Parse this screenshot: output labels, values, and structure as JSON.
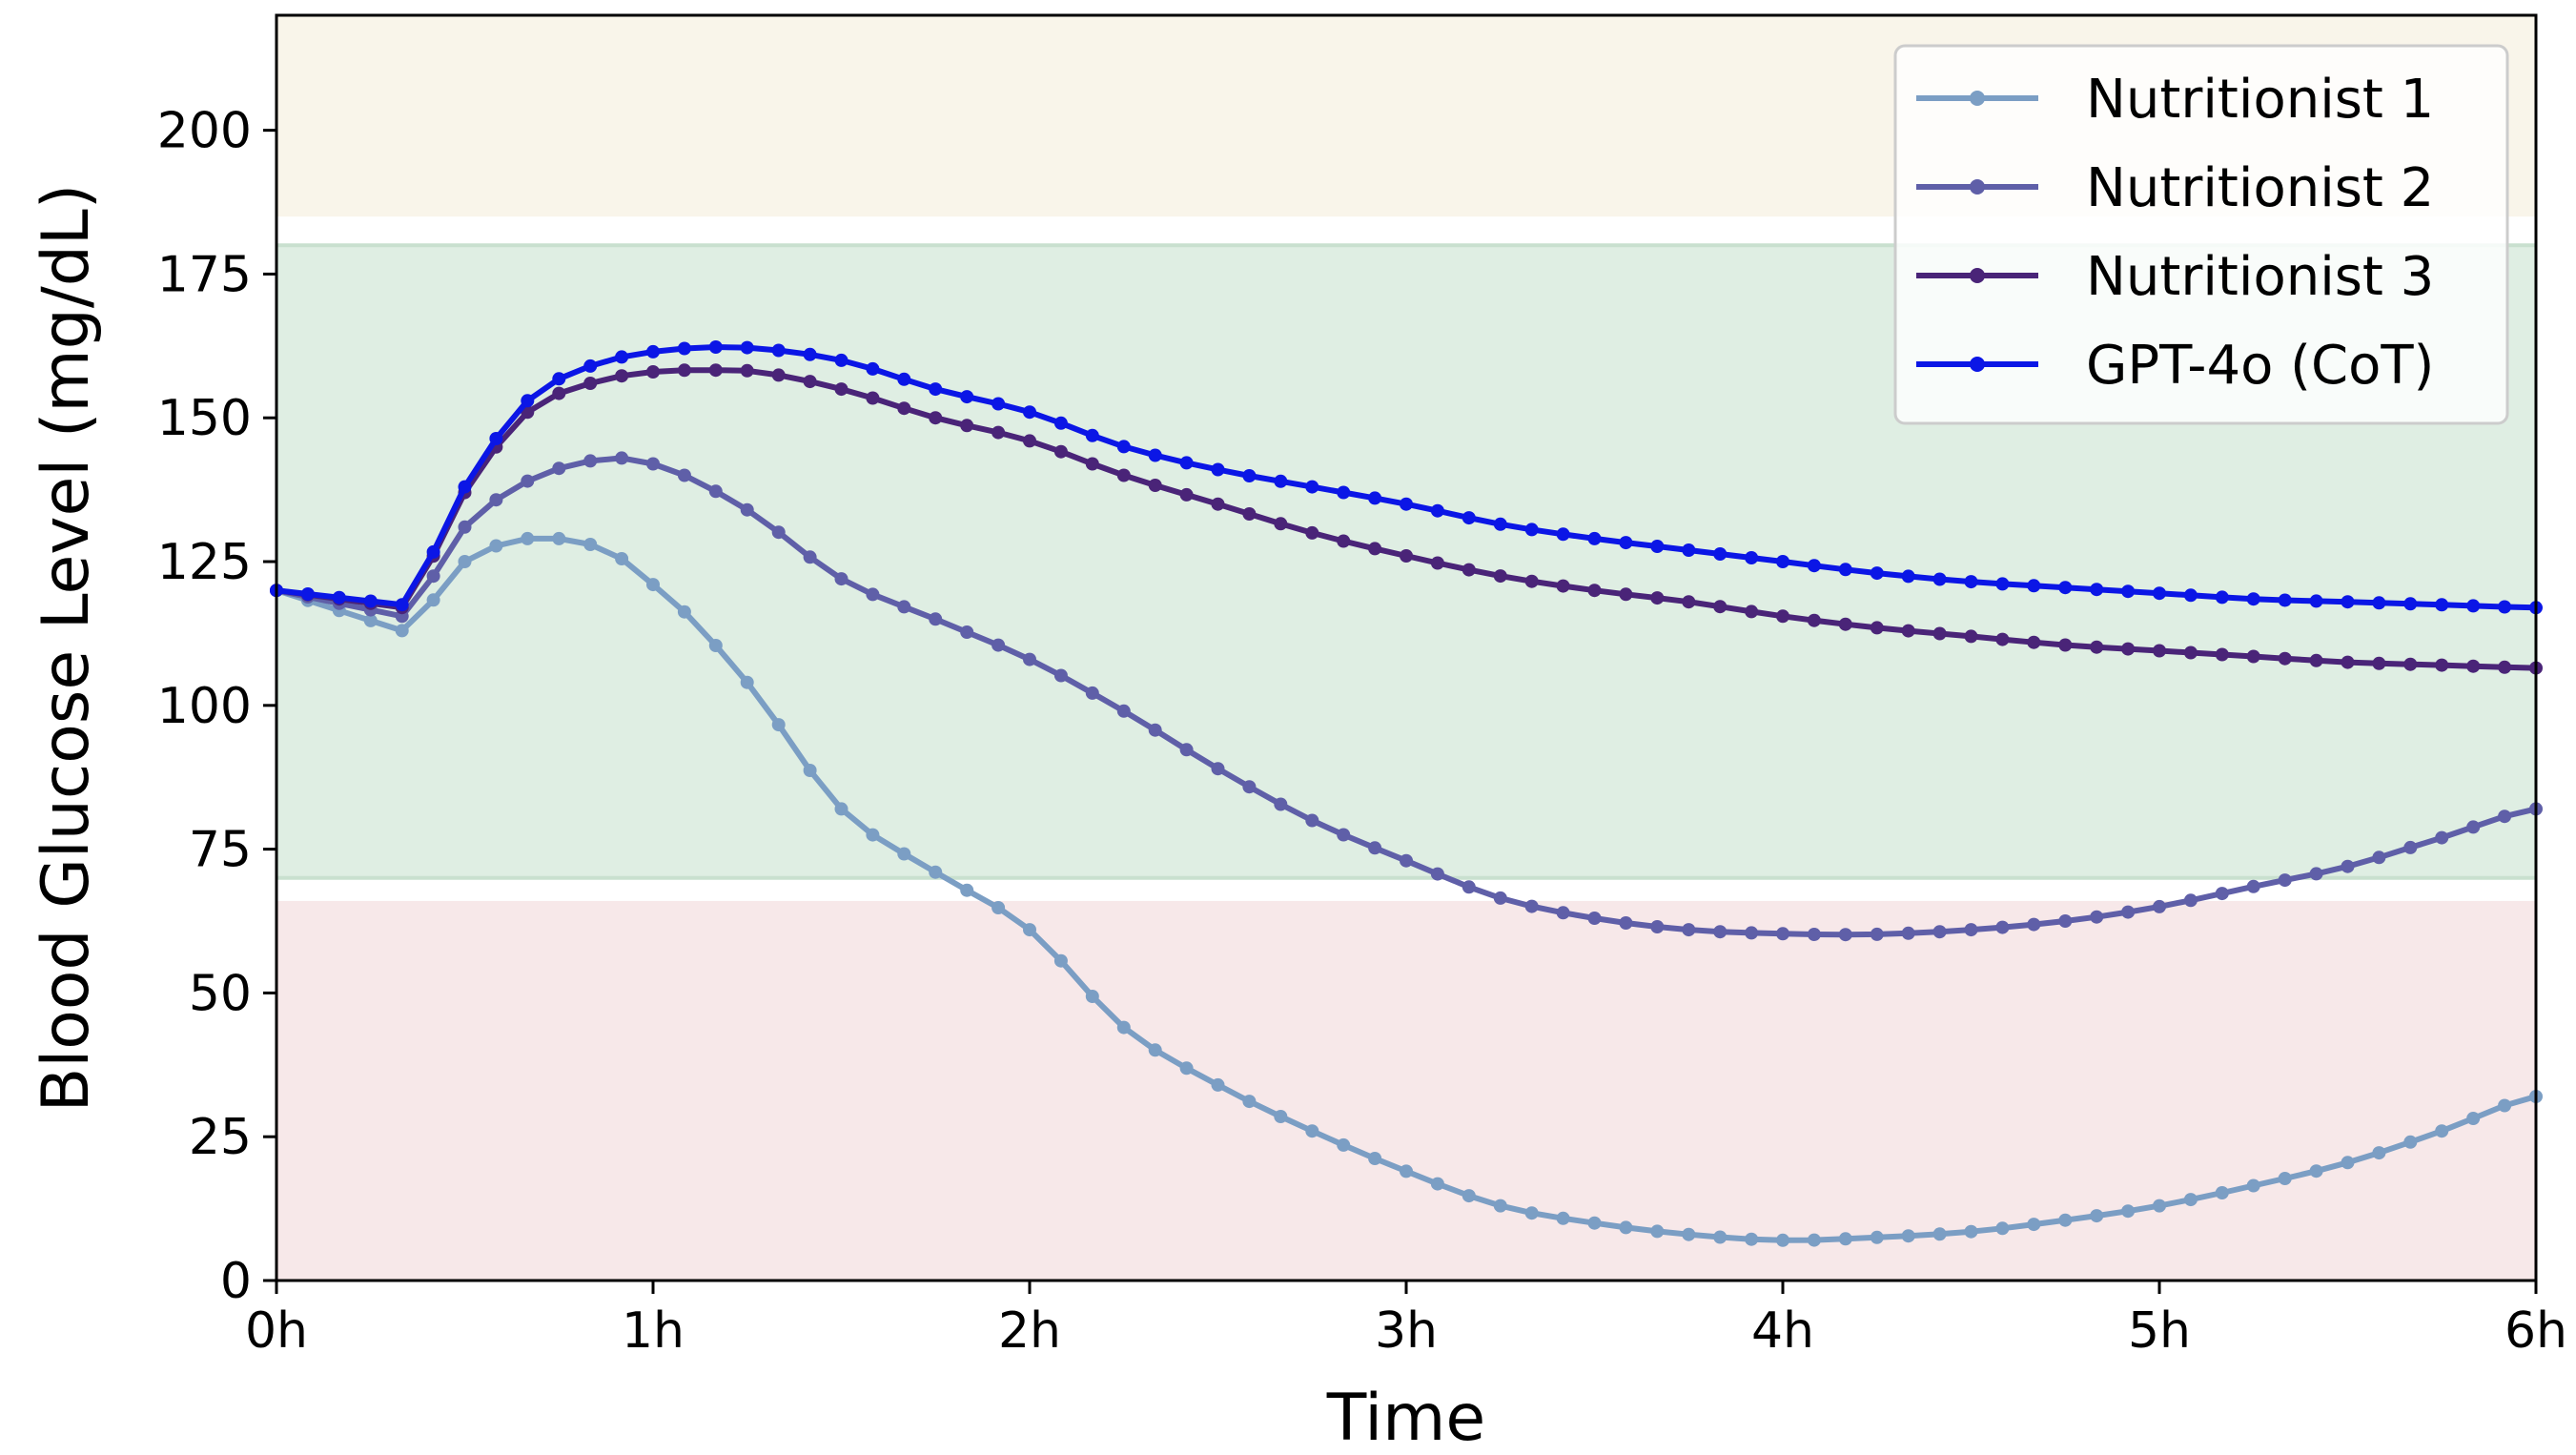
{
  "chart_data": {
    "type": "line",
    "xlabel": "Time",
    "ylabel": "Blood Glucose Level (mg/dL)",
    "xlim": [
      0,
      6
    ],
    "ylim": [
      0,
      220
    ],
    "x_ticks": [
      0,
      1,
      2,
      3,
      4,
      5,
      6
    ],
    "x_tick_labels": [
      "0h",
      "1h",
      "2h",
      "3h",
      "4h",
      "5h",
      "6h"
    ],
    "y_ticks": [
      0,
      25,
      50,
      75,
      100,
      125,
      150,
      175,
      200
    ],
    "y_tick_labels": [
      "0",
      "25",
      "50",
      "75",
      "100",
      "125",
      "150",
      "175",
      "200"
    ],
    "grid": false,
    "legend_position": "top-right",
    "bands": [
      {
        "name": "high",
        "from": 185,
        "to": 220,
        "color": "#f9f5ea"
      },
      {
        "name": "target",
        "from": 70,
        "to": 180,
        "color": "#dfeee3"
      },
      {
        "name": "low",
        "from": 0,
        "to": 66,
        "color": "#f7e8e9"
      }
    ],
    "series": [
      {
        "name": "Nutritionist 1",
        "color": "#7b9ec4",
        "x": [
          0,
          0.333,
          0.5,
          0.667,
          0.75,
          0.833,
          1.0,
          1.25,
          1.5,
          1.75,
          2.0,
          2.25,
          2.5,
          2.75,
          3.0,
          3.25,
          3.5,
          3.75,
          4.0,
          4.25,
          4.5,
          4.75,
          5.0,
          5.25,
          5.5,
          5.75,
          6.0
        ],
        "y": [
          120,
          113,
          125,
          129,
          129,
          128,
          121,
          104,
          82,
          71,
          61,
          44,
          34,
          26,
          19,
          13,
          10,
          8,
          7,
          7.5,
          8.5,
          10.5,
          13,
          16.5,
          20.5,
          26,
          32
        ]
      },
      {
        "name": "Nutritionist 2",
        "color": "#5f5fa8",
        "x": [
          0,
          0.333,
          0.5,
          0.667,
          0.833,
          0.917,
          1.0,
          1.25,
          1.5,
          1.75,
          2.0,
          2.25,
          2.5,
          2.75,
          3.0,
          3.25,
          3.5,
          3.75,
          4.0,
          4.25,
          4.5,
          4.75,
          5.0,
          5.25,
          5.5,
          5.75,
          6.0
        ],
        "y": [
          120,
          115.5,
          131,
          139,
          142.5,
          143,
          142,
          134,
          122,
          115,
          108,
          99,
          89,
          80,
          73,
          66.5,
          63,
          61,
          60.3,
          60.2,
          61,
          62.5,
          65,
          68.5,
          72,
          77,
          82
        ]
      },
      {
        "name": "Nutritionist 3",
        "color": "#4a2478",
        "x": [
          0,
          0.333,
          0.5,
          0.667,
          0.833,
          1.0,
          1.167,
          1.25,
          1.5,
          1.75,
          2.0,
          2.25,
          2.5,
          2.75,
          3.0,
          3.25,
          3.5,
          3.75,
          4.0,
          4.25,
          4.5,
          4.75,
          5.0,
          5.25,
          5.5,
          5.75,
          6.0
        ],
        "y": [
          120,
          117,
          137,
          151,
          156,
          158,
          158.3,
          158.2,
          155,
          150,
          146,
          140,
          135,
          130,
          126,
          122.5,
          120,
          118,
          115.5,
          113.5,
          112,
          110.5,
          109.5,
          108.5,
          107.5,
          107,
          106.5
        ]
      },
      {
        "name": "GPT-4o (CoT)",
        "color": "#0b16e6",
        "x": [
          0,
          0.333,
          0.5,
          0.667,
          0.833,
          1.0,
          1.167,
          1.25,
          1.5,
          1.75,
          2.0,
          2.25,
          2.5,
          2.75,
          3.0,
          3.25,
          3.5,
          3.75,
          4.0,
          4.25,
          4.5,
          4.75,
          5.0,
          5.25,
          5.5,
          5.75,
          6.0
        ],
        "y": [
          120,
          117.5,
          138,
          153,
          159,
          161.5,
          162.3,
          162.2,
          160,
          155,
          151,
          145,
          141,
          138,
          135,
          131.5,
          129,
          127,
          125,
          123,
          121.5,
          120.5,
          119.5,
          118.5,
          118,
          117.5,
          117
        ]
      }
    ]
  }
}
